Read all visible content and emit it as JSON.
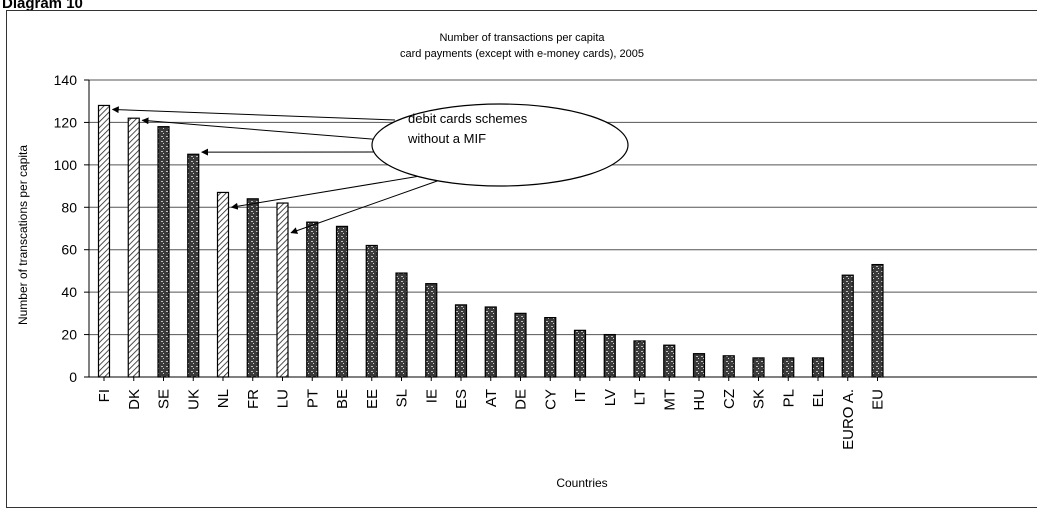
{
  "page": {
    "heading": "Diagram 10"
  },
  "chart_data": {
    "type": "bar",
    "title": "Number of transactions per capita",
    "subtitle": "card payments (except with e-money cards), 2005",
    "xlabel": "Countries",
    "ylabel": "Number of transcations per capita",
    "ylim": [
      0,
      140
    ],
    "yticks": [
      0,
      20,
      40,
      60,
      80,
      100,
      120,
      140
    ],
    "grid": true,
    "categories": [
      "FI",
      "DK",
      "SE",
      "UK",
      "NL",
      "FR",
      "LU",
      "PT",
      "BE",
      "EE",
      "SL",
      "IE",
      "ES",
      "AT",
      "DE",
      "CY",
      "IT",
      "LV",
      "LT",
      "MT",
      "HU",
      "CZ",
      "SK",
      "PL",
      "EL",
      "EURO A.",
      "EU"
    ],
    "values": [
      128,
      122,
      118,
      105,
      87,
      84,
      82,
      73,
      71,
      62,
      49,
      44,
      34,
      33,
      30,
      28,
      22,
      20,
      17,
      15,
      11,
      10,
      9,
      9,
      9,
      48,
      53
    ],
    "patterns": [
      "hatch",
      "hatch",
      "dark",
      "dark",
      "hatch",
      "dark",
      "hatch",
      "dark",
      "dark",
      "dark",
      "dark",
      "dark",
      "dark",
      "dark",
      "dark",
      "dark",
      "dark",
      "dark",
      "dark",
      "dark",
      "dark",
      "dark",
      "dark",
      "dark",
      "dark",
      "dark",
      "dark"
    ],
    "annotation": {
      "text_line1": "debit cards schemes",
      "text_line2": "without a MIF",
      "points_to": [
        "FI",
        "DK",
        "SE",
        "UK",
        "NL",
        "LU"
      ]
    }
  }
}
